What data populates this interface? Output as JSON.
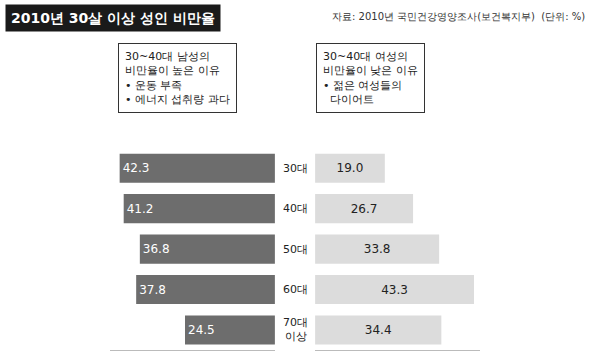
{
  "chart_data": {
    "type": "bar",
    "orientation": "horizontal",
    "title": "2010년 30살 이상 성인 비만율",
    "annotations": [
      "자료: 2010년 국민건강영양조사(보건복지부)  (단위: %)",
      "30~40대 남성의\n비만율이 높은 이유\n• 운동 부족\n• 에너지 섭취량 과다",
      "30~40대 여성의\n비만율이 낮은 이유\n• 젊은 여성들의\n  다이어트"
    ],
    "categories": [
      "30대",
      "40대",
      "50대",
      "60대",
      "70대 이상"
    ],
    "series": [
      {
        "color": "#6d6d6d",
        "values": [
          42.3,
          41.2,
          36.8,
          37.8,
          24.5
        ],
        "value_labels": [
          "42.3",
          "41.2",
          "36.8",
          "37.8",
          "24.5"
        ]
      },
      {
        "color": "#dcdcdc",
        "values": [
          19.0,
          26.7,
          33.8,
          43.3,
          34.4
        ],
        "value_labels": [
          "19.0",
          "26.7",
          "33.8",
          "43.3",
          "34.4"
        ]
      }
    ],
    "xlim": [
      0,
      45
    ],
    "tick_labels": false,
    "data_labels": true,
    "grid": false
  }
}
